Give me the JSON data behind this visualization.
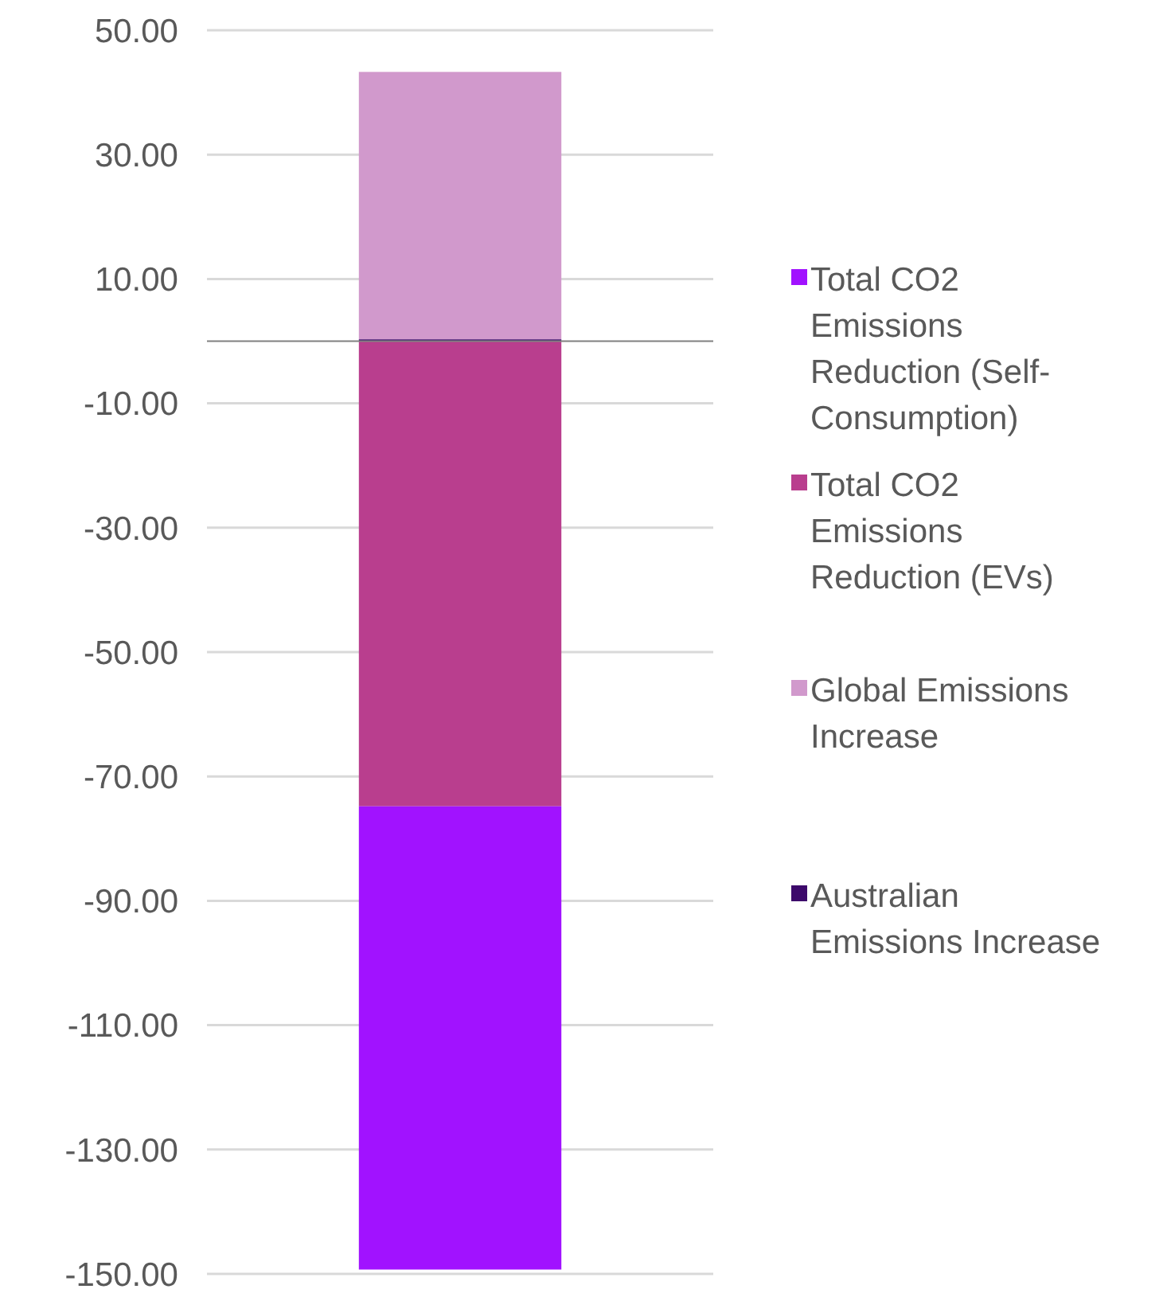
{
  "chart_data": {
    "type": "bar",
    "stacked": true,
    "categories": [
      null
    ],
    "series": [
      {
        "name": "Australian Emissions Increase",
        "color": "#3d0a6b",
        "values": [
          0.3
        ]
      },
      {
        "name": "Global Emissions Increase",
        "color": "#d199cc",
        "values": [
          43
        ]
      },
      {
        "name": "Total CO2 Emissions Reduction (EVs)",
        "color": "#b93e8e",
        "values": [
          -74.8
        ]
      },
      {
        "name": "Total CO2 Emissions Reduction (Self-Consumption)",
        "color": "#a112ff",
        "values": [
          -74.5
        ]
      }
    ],
    "ylim": [
      -150,
      50
    ],
    "yticks": [
      {
        "value": 50,
        "label": "50.00"
      },
      {
        "value": 30,
        "label": "30.00"
      },
      {
        "value": 10,
        "label": "10.00"
      },
      {
        "value": -10,
        "label": "-10.00"
      },
      {
        "value": -30,
        "label": "-30.00"
      },
      {
        "value": -50,
        "label": "-50.00"
      },
      {
        "value": -70,
        "label": "-70.00"
      },
      {
        "value": -90,
        "label": "-90.00"
      },
      {
        "value": -110,
        "label": "-110.00"
      },
      {
        "value": -130,
        "label": "-130.00"
      },
      {
        "value": -150,
        "label": "-150.00"
      }
    ],
    "grid": "y",
    "legend": "right"
  }
}
